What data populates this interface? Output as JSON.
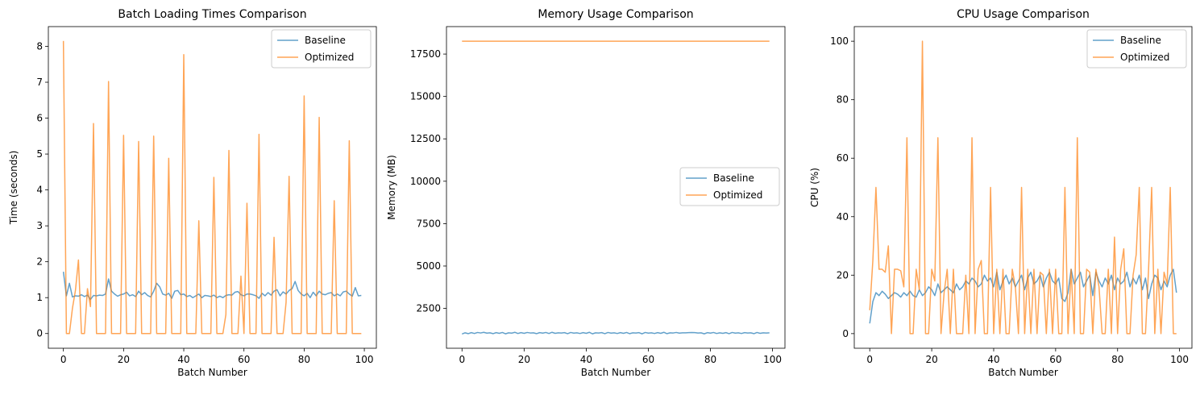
{
  "chart_data": [
    {
      "type": "line",
      "title": "Batch Loading Times Comparison",
      "xlabel": "Batch Number",
      "ylabel": "Time (seconds)",
      "xlim": [
        -5,
        104
      ],
      "ylim": [
        -0.41,
        8.55
      ],
      "xticks": [
        0,
        20,
        40,
        60,
        80,
        100
      ],
      "xtick_labels": [
        "0",
        "20",
        "40",
        "60",
        "80",
        "100"
      ],
      "yticks": [
        0,
        1,
        2,
        3,
        4,
        5,
        6,
        7,
        8
      ],
      "ytick_labels": [
        "0",
        "1",
        "2",
        "3",
        "4",
        "5",
        "6",
        "7",
        "8"
      ],
      "legend_position": "upper right",
      "grid": false,
      "series": [
        {
          "name": "Baseline",
          "color": "#1f77b4",
          "x": [
            0,
            1,
            2,
            3,
            4,
            5,
            6,
            7,
            8,
            9,
            10,
            11,
            12,
            13,
            14,
            15,
            16,
            17,
            18,
            19,
            20,
            21,
            22,
            23,
            24,
            25,
            26,
            27,
            28,
            29,
            30,
            31,
            32,
            33,
            34,
            35,
            36,
            37,
            38,
            39,
            40,
            41,
            42,
            43,
            44,
            45,
            46,
            47,
            48,
            49,
            50,
            51,
            52,
            53,
            54,
            55,
            56,
            57,
            58,
            59,
            60,
            61,
            62,
            63,
            64,
            65,
            66,
            67,
            68,
            69,
            70,
            71,
            72,
            73,
            74,
            75,
            76,
            77,
            78,
            79,
            80,
            81,
            82,
            83,
            84,
            85,
            86,
            87,
            88,
            89,
            90,
            91,
            92,
            93,
            94,
            95,
            96,
            97,
            98,
            99
          ],
          "y": [
            1.72,
            1.05,
            1.4,
            1.02,
            1.05,
            1.04,
            1.08,
            1.03,
            1.07,
            0.95,
            1.06,
            1.05,
            1.07,
            1.06,
            1.1,
            1.52,
            1.18,
            1.1,
            1.04,
            1.08,
            1.1,
            1.15,
            1.05,
            1.08,
            1.03,
            1.18,
            1.08,
            1.14,
            1.06,
            1.02,
            1.18,
            1.4,
            1.3,
            1.1,
            1.07,
            1.12,
            0.98,
            1.18,
            1.2,
            1.08,
            1.1,
            1.03,
            1.06,
            1.0,
            1.05,
            1.1,
            1.0,
            1.06,
            1.05,
            1.03,
            1.07,
            1.0,
            1.04,
            1.0,
            1.06,
            1.08,
            1.07,
            1.15,
            1.17,
            1.08,
            1.05,
            1.1,
            1.1,
            1.08,
            1.05,
            0.98,
            1.12,
            1.05,
            1.14,
            1.07,
            1.18,
            1.22,
            1.05,
            1.16,
            1.1,
            1.2,
            1.25,
            1.45,
            1.2,
            1.1,
            1.05,
            1.12,
            1.0,
            1.15,
            1.05,
            1.18,
            1.1,
            1.08,
            1.12,
            1.14,
            1.05,
            1.1,
            1.05,
            1.16,
            1.18,
            1.1,
            1.04,
            1.28,
            1.05,
            1.06
          ]
        },
        {
          "name": "Optimized",
          "color": "#ff7f0e",
          "x": [
            0,
            1,
            2,
            3,
            4,
            5,
            6,
            7,
            8,
            9,
            10,
            11,
            12,
            13,
            14,
            15,
            16,
            17,
            18,
            19,
            20,
            21,
            22,
            23,
            24,
            25,
            26,
            27,
            28,
            29,
            30,
            31,
            32,
            33,
            34,
            35,
            36,
            37,
            38,
            39,
            40,
            41,
            42,
            43,
            44,
            45,
            46,
            47,
            48,
            49,
            50,
            51,
            52,
            53,
            54,
            55,
            56,
            57,
            58,
            59,
            60,
            61,
            62,
            63,
            64,
            65,
            66,
            67,
            68,
            69,
            70,
            71,
            72,
            73,
            74,
            75,
            76,
            77,
            78,
            79,
            80,
            81,
            82,
            83,
            84,
            85,
            86,
            87,
            88,
            89,
            90,
            91,
            92,
            93,
            94,
            95,
            96,
            97,
            98,
            99
          ],
          "y": [
            8.15,
            0,
            0,
            0.7,
            1.2,
            2.05,
            0,
            0,
            1.25,
            0.75,
            5.85,
            0,
            0,
            0,
            0,
            7.02,
            0,
            0,
            0,
            0,
            5.52,
            0,
            0,
            0,
            0,
            5.35,
            0,
            0,
            0,
            0,
            5.5,
            0,
            0,
            0,
            0,
            4.88,
            0,
            0,
            0,
            0,
            7.77,
            0,
            0,
            0,
            0,
            3.14,
            0,
            0,
            0,
            0,
            4.35,
            0,
            0,
            0,
            0.53,
            5.1,
            0,
            0,
            0,
            1.6,
            0,
            3.63,
            0,
            0,
            0,
            5.55,
            0,
            0,
            0,
            0,
            2.68,
            0,
            0,
            0,
            0.87,
            4.38,
            0,
            0,
            0,
            0,
            6.62,
            0,
            0,
            0,
            0,
            6.02,
            0,
            0,
            0,
            0,
            3.7,
            0,
            0,
            0,
            0,
            5.37,
            0,
            0,
            0,
            0
          ]
        }
      ]
    },
    {
      "type": "line",
      "title": "Memory Usage Comparison",
      "xlabel": "Batch Number",
      "ylabel": "Memory (MB)",
      "xlim": [
        -5,
        104
      ],
      "ylim": [
        150,
        19120
      ],
      "xticks": [
        0,
        20,
        40,
        60,
        80,
        100
      ],
      "xtick_labels": [
        "0",
        "20",
        "40",
        "60",
        "80",
        "100"
      ],
      "yticks": [
        2500,
        5000,
        7500,
        10000,
        12500,
        15000,
        17500
      ],
      "ytick_labels": [
        "2500",
        "5000",
        "7500",
        "10000",
        "12500",
        "15000",
        "17500"
      ],
      "legend_position": "center right",
      "grid": false,
      "series": [
        {
          "name": "Baseline",
          "color": "#1f77b4",
          "x": [
            0,
            1,
            2,
            3,
            4,
            5,
            6,
            7,
            8,
            9,
            10,
            11,
            12,
            13,
            14,
            15,
            16,
            17,
            18,
            19,
            20,
            21,
            22,
            23,
            24,
            25,
            26,
            27,
            28,
            29,
            30,
            31,
            32,
            33,
            34,
            35,
            36,
            37,
            38,
            39,
            40,
            41,
            42,
            43,
            44,
            45,
            46,
            47,
            48,
            49,
            50,
            51,
            52,
            53,
            54,
            55,
            56,
            57,
            58,
            59,
            60,
            61,
            62,
            63,
            64,
            65,
            66,
            67,
            68,
            69,
            70,
            71,
            72,
            73,
            74,
            75,
            76,
            77,
            78,
            79,
            80,
            81,
            82,
            83,
            84,
            85,
            86,
            87,
            88,
            89,
            90,
            91,
            92,
            93,
            94,
            95,
            96,
            97,
            98,
            99
          ],
          "y": [
            990,
            1060,
            1010,
            1070,
            1020,
            1080,
            1050,
            1090,
            1040,
            1060,
            1010,
            1070,
            1030,
            1080,
            1000,
            1060,
            1040,
            1090,
            1020,
            1070,
            1030,
            1080,
            1050,
            1060,
            1010,
            1070,
            1040,
            1080,
            1020,
            1090,
            1030,
            1060,
            1050,
            1070,
            1010,
            1080,
            1040,
            1060,
            1020,
            1070,
            1030,
            1090,
            1000,
            1060,
            1050,
            1070,
            1010,
            1080,
            1040,
            1060,
            1020,
            1070,
            1030,
            1080,
            1010,
            1060,
            1050,
            1070,
            1000,
            1080,
            1040,
            1060,
            1020,
            1070,
            1030,
            1090,
            1010,
            1060,
            1050,
            1080,
            1040,
            1060,
            1060,
            1070,
            1080,
            1070,
            1050,
            1060,
            1000,
            1070,
            1040,
            1080,
            1020,
            1060,
            1030,
            1070,
            1010,
            1080,
            1040,
            1060,
            1020,
            1070,
            1050,
            1060,
            1010,
            1080,
            1030,
            1060,
            1050,
            1060
          ]
        },
        {
          "name": "Optimized",
          "color": "#ff7f0e",
          "x": [
            0,
            99
          ],
          "y": [
            18260,
            18260
          ]
        }
      ]
    },
    {
      "type": "line",
      "title": "CPU Usage Comparison",
      "xlabel": "Batch Number",
      "ylabel": "CPU (%)",
      "xlim": [
        -5,
        104
      ],
      "ylim": [
        -5,
        105
      ],
      "xticks": [
        0,
        20,
        40,
        60,
        80,
        100
      ],
      "xtick_labels": [
        "0",
        "20",
        "40",
        "60",
        "80",
        "100"
      ],
      "yticks": [
        0,
        20,
        40,
        60,
        80,
        100
      ],
      "ytick_labels": [
        "0",
        "20",
        "40",
        "60",
        "80",
        "100"
      ],
      "legend_position": "upper right",
      "grid": false,
      "series": [
        {
          "name": "Baseline",
          "color": "#1f77b4",
          "x": [
            0,
            1,
            2,
            3,
            4,
            5,
            6,
            7,
            8,
            9,
            10,
            11,
            12,
            13,
            14,
            15,
            16,
            17,
            18,
            19,
            20,
            21,
            22,
            23,
            24,
            25,
            26,
            27,
            28,
            29,
            30,
            31,
            32,
            33,
            34,
            35,
            36,
            37,
            38,
            39,
            40,
            41,
            42,
            43,
            44,
            45,
            46,
            47,
            48,
            49,
            50,
            51,
            52,
            53,
            54,
            55,
            56,
            57,
            58,
            59,
            60,
            61,
            62,
            63,
            64,
            65,
            66,
            67,
            68,
            69,
            70,
            71,
            72,
            73,
            74,
            75,
            76,
            77,
            78,
            79,
            80,
            81,
            82,
            83,
            84,
            85,
            86,
            87,
            88,
            89,
            90,
            91,
            92,
            93,
            94,
            95,
            96,
            97,
            98,
            99
          ],
          "y": [
            3.5,
            11,
            14,
            13,
            14.5,
            13.5,
            12,
            13,
            14,
            13.5,
            12.5,
            14,
            13,
            14.5,
            13,
            12.5,
            15,
            13,
            14,
            16,
            15,
            13,
            17,
            14,
            15,
            16,
            15,
            14,
            17,
            15,
            16,
            18,
            17,
            19,
            18,
            16,
            17,
            20,
            18,
            19,
            16,
            21,
            15,
            18,
            20,
            17,
            19,
            16,
            18,
            20,
            15,
            19,
            21,
            17,
            18,
            20,
            16,
            19,
            21,
            18,
            17,
            19,
            12,
            11,
            14,
            22,
            17,
            19,
            21,
            16,
            18,
            20,
            13,
            21,
            18,
            16,
            19,
            17,
            20,
            15,
            19,
            17,
            18,
            21,
            16,
            19,
            17,
            20,
            15,
            19,
            12,
            17,
            20,
            19,
            15,
            18,
            16,
            20,
            22,
            14
          ]
        },
        {
          "name": "Optimized",
          "color": "#ff7f0e",
          "x": [
            0,
            1,
            2,
            3,
            4,
            5,
            6,
            7,
            8,
            9,
            10,
            11,
            12,
            13,
            14,
            15,
            16,
            17,
            18,
            19,
            20,
            21,
            22,
            23,
            24,
            25,
            26,
            27,
            28,
            29,
            30,
            31,
            32,
            33,
            34,
            35,
            36,
            37,
            38,
            39,
            40,
            41,
            42,
            43,
            44,
            45,
            46,
            47,
            48,
            49,
            50,
            51,
            52,
            53,
            54,
            55,
            56,
            57,
            58,
            59,
            60,
            61,
            62,
            63,
            64,
            65,
            66,
            67,
            68,
            69,
            70,
            71,
            72,
            73,
            74,
            75,
            76,
            77,
            78,
            79,
            80,
            81,
            82,
            83,
            84,
            85,
            86,
            87,
            88,
            89,
            90,
            91,
            92,
            93,
            94,
            95,
            96,
            97,
            98,
            99
          ],
          "y": [
            8,
            25,
            50,
            22,
            22,
            21,
            30,
            0,
            22,
            22,
            21.5,
            16,
            67,
            0,
            0,
            22,
            15,
            100,
            0,
            0,
            22,
            18,
            67,
            0,
            14,
            22,
            0,
            22,
            0,
            0,
            0,
            20,
            0,
            67,
            0,
            22,
            25,
            0,
            0,
            50,
            0,
            22,
            0,
            22,
            0,
            0,
            22,
            16,
            0,
            50,
            0,
            22,
            0,
            22,
            0,
            21,
            20,
            0,
            22,
            0,
            22,
            0,
            0,
            50,
            0,
            22,
            0,
            67,
            0,
            0,
            22,
            21,
            0,
            22,
            16,
            0,
            0,
            22,
            0,
            33,
            0,
            22,
            29,
            0,
            0,
            20,
            27,
            50,
            0,
            0,
            22,
            50,
            0,
            22,
            0,
            21,
            17,
            50,
            0,
            0
          ]
        }
      ]
    }
  ]
}
